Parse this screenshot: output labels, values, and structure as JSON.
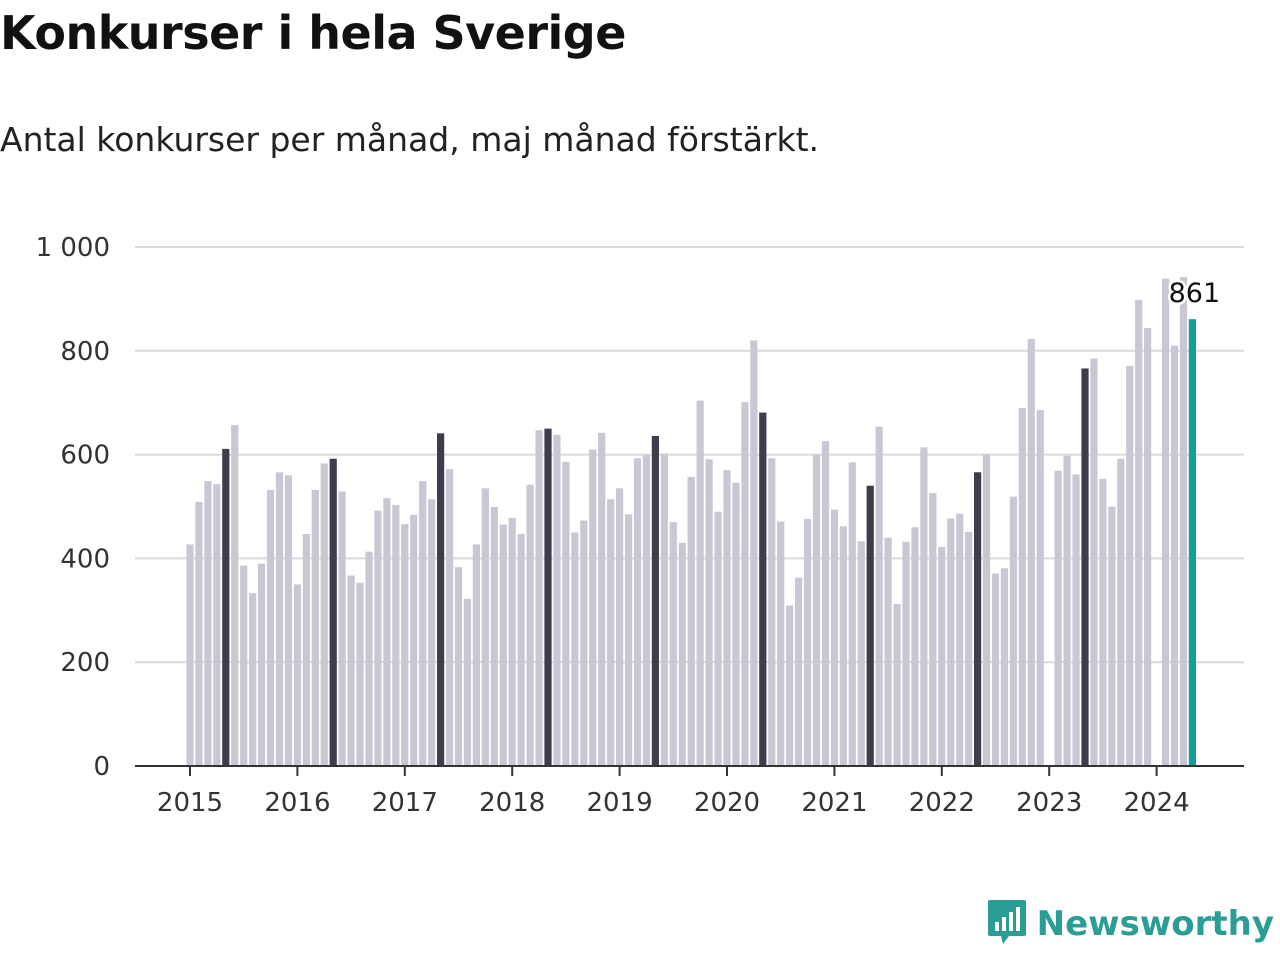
{
  "title": "Konkurser i hela Sverige",
  "subtitle": "Antal konkurser per månad, maj månad förstärkt.",
  "brand": {
    "name": "Newsworthy",
    "icon": "newsworthy-logo-icon",
    "color": "#2a9d94"
  },
  "colors": {
    "bar": "#c8c8d4",
    "may": "#3d3d4e",
    "latest": "#14a096",
    "grid": "#dadada",
    "axis": "#333333"
  },
  "chart_data": {
    "type": "bar",
    "title": "Konkurser i hela Sverige",
    "subtitle": "Antal konkurser per månad, maj månad förstärkt.",
    "xlabel": "",
    "ylabel": "",
    "ylim": [
      0,
      1000
    ],
    "yticks": [
      0,
      200,
      400,
      600,
      800,
      1000
    ],
    "ytick_labels": [
      "0",
      "200",
      "400",
      "600",
      "800",
      "1 000"
    ],
    "xtick_labels": [
      "2015",
      "2016",
      "2017",
      "2018",
      "2019",
      "2020",
      "2021",
      "2022",
      "2023",
      "2024"
    ],
    "grid": true,
    "highlight": "maj",
    "start": "2015-01",
    "values": [
      427,
      509,
      549,
      543,
      611,
      657,
      386,
      333,
      390,
      532,
      566,
      560,
      350,
      447,
      532,
      583,
      592,
      529,
      367,
      353,
      413,
      492,
      516,
      503,
      466,
      484,
      549,
      514,
      641,
      572,
      383,
      322,
      427,
      535,
      499,
      465,
      478,
      447,
      542,
      647,
      650,
      638,
      586,
      450,
      473,
      610,
      642,
      514,
      535,
      485,
      593,
      599,
      636,
      602,
      470,
      430,
      557,
      704,
      591,
      490,
      570,
      546,
      701,
      820,
      681,
      593,
      471,
      309,
      363,
      476,
      600,
      626,
      494,
      462,
      585,
      433,
      540,
      654,
      440,
      312,
      432,
      460,
      614,
      526,
      422,
      477,
      486,
      451,
      566,
      600,
      371,
      381,
      519,
      690,
      823,
      686,
      null,
      569,
      598,
      562,
      766,
      785,
      553,
      500,
      592,
      771,
      898,
      844,
      null,
      939,
      810,
      942,
      861
    ],
    "latest": {
      "month": "2024-05",
      "value": 861,
      "label": "861"
    }
  }
}
